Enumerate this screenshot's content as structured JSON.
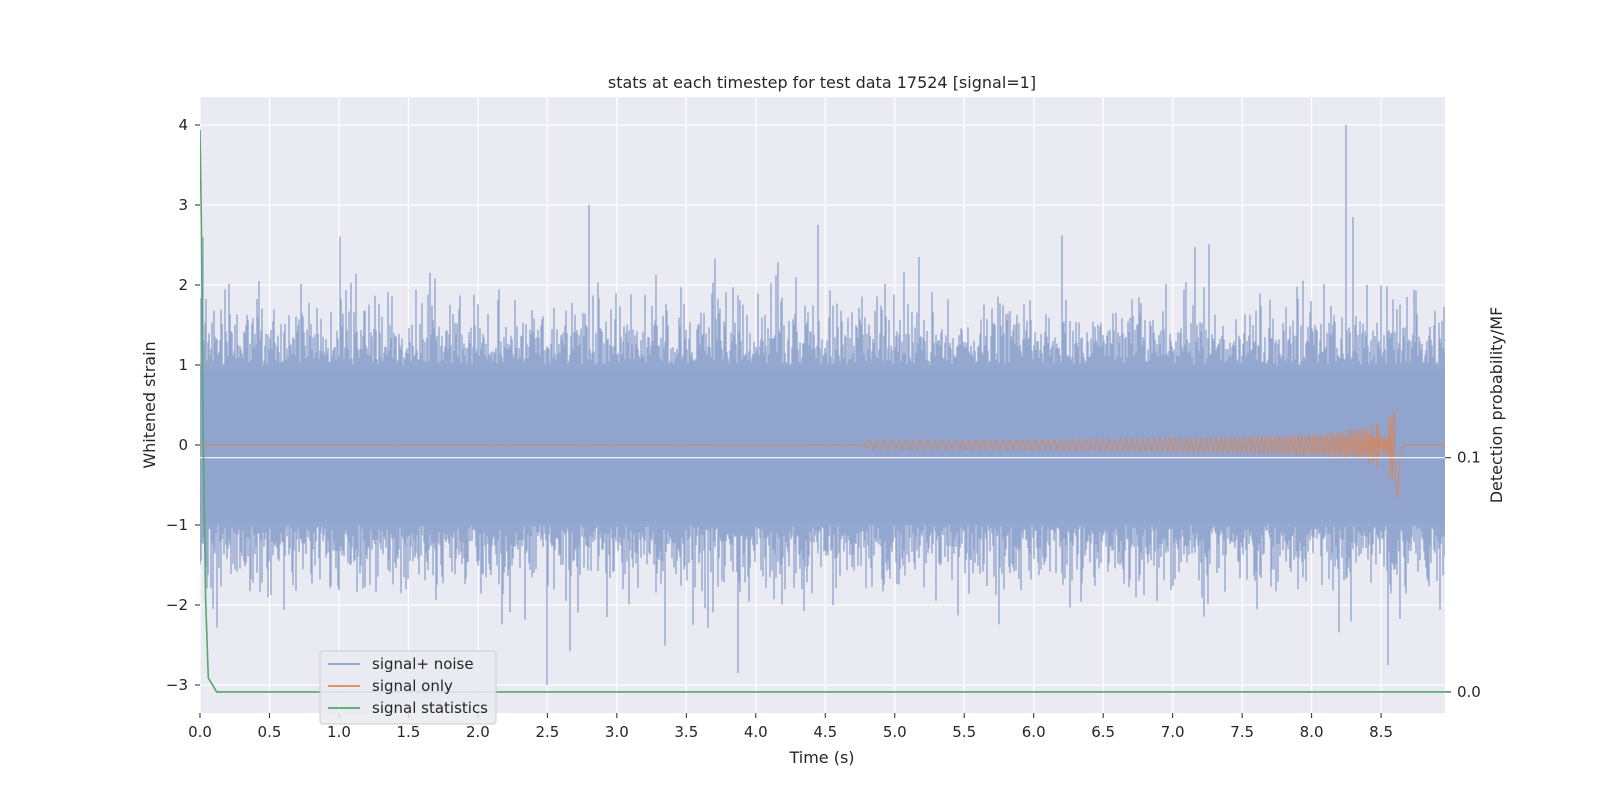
{
  "chart_data": {
    "type": "line",
    "title": "stats at each timestep for test data 17524 [signal=1]",
    "xlabel": "Time (s)",
    "ylabel": "Whitened strain",
    "y2label": "Detection probability/MF",
    "xlim": [
      0.0,
      8.96
    ],
    "ylim": [
      -3.35,
      4.35
    ],
    "y2lim": [
      -0.009,
      0.254
    ],
    "grid": true,
    "legend_position": "lower-left",
    "xticks": [
      "0.0",
      "0.5",
      "1.0",
      "1.5",
      "2.0",
      "2.5",
      "3.0",
      "3.5",
      "4.0",
      "4.5",
      "5.0",
      "5.5",
      "6.0",
      "6.5",
      "7.0",
      "7.5",
      "8.0",
      "8.5"
    ],
    "yticks": [
      "−3",
      "−2",
      "−1",
      "0",
      "1",
      "2",
      "3",
      "4"
    ],
    "y2ticks": [
      "0.0",
      "0.1"
    ],
    "series": [
      {
        "name": "signal+ noise",
        "color": "#8fa3cc",
        "kind": "noise",
        "sample_rate_hz": 2048,
        "duration_s": 8.96,
        "band_envelope": [
          -0.95,
          0.95
        ],
        "notable_peaks": [
          {
            "x": 0.02,
            "y": 2.6
          },
          {
            "x": 2.5,
            "y": -3.0
          },
          {
            "x": 2.8,
            "y": 3.0
          },
          {
            "x": 3.87,
            "y": -2.85
          },
          {
            "x": 4.45,
            "y": 2.75
          },
          {
            "x": 8.25,
            "y": 4.0
          },
          {
            "x": 8.3,
            "y": 2.85
          },
          {
            "x": 8.55,
            "y": -2.75
          }
        ]
      },
      {
        "name": "signal only",
        "color": "#dd8452",
        "kind": "chirp",
        "merger_time_s": 8.62,
        "onset_time_s": 4.8,
        "peak_amplitude": 0.78,
        "baseline": 0.0
      },
      {
        "name": "signal statistics",
        "color": "#55a868",
        "kind": "statistic",
        "axis": "right",
        "x": [
          0.0,
          0.01,
          0.02,
          0.04,
          0.06,
          0.12,
          8.96
        ],
        "y": [
          0.24,
          0.2,
          0.12,
          0.04,
          0.006,
          0.0,
          0.0
        ]
      }
    ],
    "axis_line_right_at": 0.1
  }
}
